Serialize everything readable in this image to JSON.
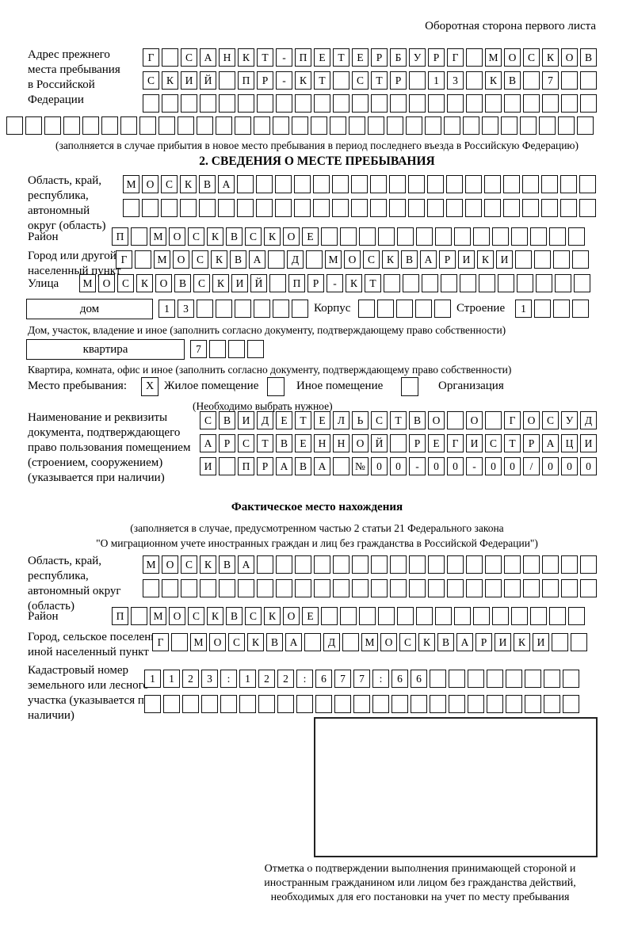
{
  "header": {
    "note": "Оборотная сторона первого листа"
  },
  "prev_address": {
    "label": "Адрес прежнего места пребывания в Российской Федерации",
    "row1": "Г||С|А|Н|К|Т|-|П|Е|Т|Е|Р|Б|У|Р|Г||М|О|С|К|О|В",
    "row2": "С|К|И|Й||П|Р|-|К|Т||С|Т|Р||1|3||К|В||7||",
    "row3": "|||||||||||||||||||||||",
    "row4": "||||||||||||||||||||||||||||||",
    "note": "(заполняется в случае прибытия в новое место пребывания в период последнего въезда в Российскую Федерацию)"
  },
  "section2": {
    "title": "2. СВЕДЕНИЯ О МЕСТЕ ПРЕБЫВАНИЯ",
    "oblast": {
      "label": "Область, край, республика, автономный округ (область)",
      "row1": "М|О|С|К|В|А|||||||||||||||||||",
      "row2": "||||||||||||||||||||||||"
    },
    "raion": {
      "label": "Район",
      "row": "П||М|О|С|К|В|С|К|О|Е||||||||||||||"
    },
    "gorod": {
      "label": "Город или другой населенный пункт",
      "row": "Г||М|О|С|К|В|А||Д||М|О|С|К|В|А|Р|И|К|И||||"
    },
    "ulitsa": {
      "label": "Улица",
      "row": "М|О|С|К|О|В|С|К|И|Й||П|Р|-|К|Т|||||||||||"
    },
    "dom": {
      "box_label": "дом",
      "cells": "1|3||||||",
      "korpus_label": "Корпус",
      "korpus_cells": "||||",
      "stroenie_label": "Строение",
      "stroenie_cells": "1|||",
      "note": "Дом, участок, владение и иное (заполнить согласно документу, подтверждающему право собственности)"
    },
    "kvartira": {
      "box_label": "квартира",
      "cells": "7|||",
      "note": "Квартира, комната, офис и иное (заполнить согласно документу, подтверждающему право собственности)"
    },
    "mesto": {
      "label": "Место пребывания:",
      "opt1": "Жилое помещение",
      "opt1_mark": "X",
      "opt2": "Иное помещение",
      "opt2_mark": "",
      "opt3": "Организация",
      "opt3_mark": "",
      "note": "(Необходимо выбрать нужное)"
    },
    "doc": {
      "label": "Наименование и реквизиты документа, подтверждающего право пользования помещением (строением, сооружением) (указывается при наличии)",
      "row1": "С|В|И|Д|Е|Т|Е|Л|Ь|С|Т|В|О||О||Г|О|С|У|Д",
      "row2": "А|Р|С|Т|В|Е|Н|Н|О|Й||Р|Е|Г|И|С|Т|Р|А|Ц|И",
      "row3": "И||П|Р|А|В|А||№|0|0|-|0|0|-|0|0|/|0|0|0"
    }
  },
  "factual": {
    "title": "Фактическое место нахождения",
    "note1": "(заполняется в случае, предусмотренном частью 2 статьи 21 Федерального закона",
    "note2": "\"О миграционном учете иностранных граждан и лиц без гражданства в Российской Федерации\")",
    "oblast": {
      "label": "Область, край, республика, автономный округ (область)",
      "row1": "М|О|С|К|В|А||||||||||||||||||",
      "row2": "|||||||||||||||||||||||"
    },
    "raion": {
      "label": "Район",
      "row": "П||М|О|С|К|В|С|К|О|Е||||||||||||||"
    },
    "gorod": {
      "label": "Город, сельское поселение, иной населенный пункт",
      "row": "Г||М|О|С|К|В|А||Д||М|О|С|К|В|А|Р|И|К|И||"
    },
    "kadastr": {
      "label": "Кадастровый номер земельного или лесного участка (указывается при наличии)",
      "row1": "1|1|2|3|:|1|2|2|:|6|7|7|:|6|6||||||||",
      "row2": "||||||||||||||||||||||"
    },
    "stamp_note": "Отметка о подтверждении выполнения принимающей стороной и иностранным гражданином или лицом без гражданства действий, необходимых для его постановки на учет по месту пребывания"
  }
}
